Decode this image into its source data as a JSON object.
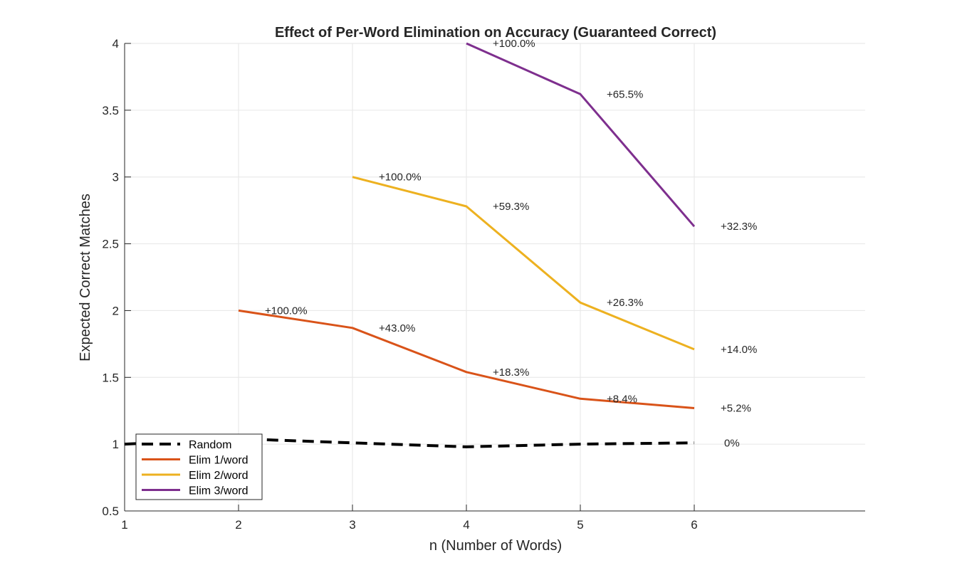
{
  "chart_data": {
    "type": "line",
    "title": "Effect of Per-Word Elimination on Accuracy (Guaranteed Correct)",
    "xlabel": "n (Number of Words)",
    "ylabel": "Expected Correct Matches",
    "xlim": [
      1,
      7.5
    ],
    "ylim": [
      0.5,
      4
    ],
    "xticks": [
      "1",
      "2",
      "3",
      "4",
      "5",
      "6"
    ],
    "yticks": [
      "0.5",
      "1",
      "1.5",
      "2",
      "2.5",
      "3",
      "3.5",
      "4"
    ],
    "grid": true,
    "legend_location": "bottom-left",
    "series": [
      {
        "name": "Random",
        "style": "dashed",
        "color": "#000000",
        "x": [
          1,
          2,
          3,
          4,
          5,
          6
        ],
        "y": [
          1.0,
          1.04,
          1.01,
          0.98,
          1.0,
          1.01
        ],
        "labels": [
          null,
          null,
          null,
          null,
          null,
          "0%"
        ]
      },
      {
        "name": "Elim 1/word",
        "style": "solid",
        "color": "#D95319",
        "x": [
          2,
          3,
          4,
          5,
          6
        ],
        "y": [
          2.0,
          1.87,
          1.54,
          1.34,
          1.27
        ],
        "labels": [
          "+100.0%",
          "+43.0%",
          "+18.3%",
          "+8.4%",
          "+5.2%"
        ]
      },
      {
        "name": "Elim 2/word",
        "style": "solid",
        "color": "#EDB120",
        "x": [
          3,
          4,
          5,
          6
        ],
        "y": [
          3.0,
          2.78,
          2.06,
          1.71
        ],
        "labels": [
          "+100.0%",
          "+59.3%",
          "+26.3%",
          "+14.0%"
        ]
      },
      {
        "name": "Elim 3/word",
        "style": "solid",
        "color": "#7E2F8E",
        "x": [
          4,
          5,
          6
        ],
        "y": [
          4.0,
          3.62,
          2.63
        ],
        "labels": [
          "+100.0%",
          "+65.5%",
          "+32.3%"
        ]
      }
    ]
  }
}
